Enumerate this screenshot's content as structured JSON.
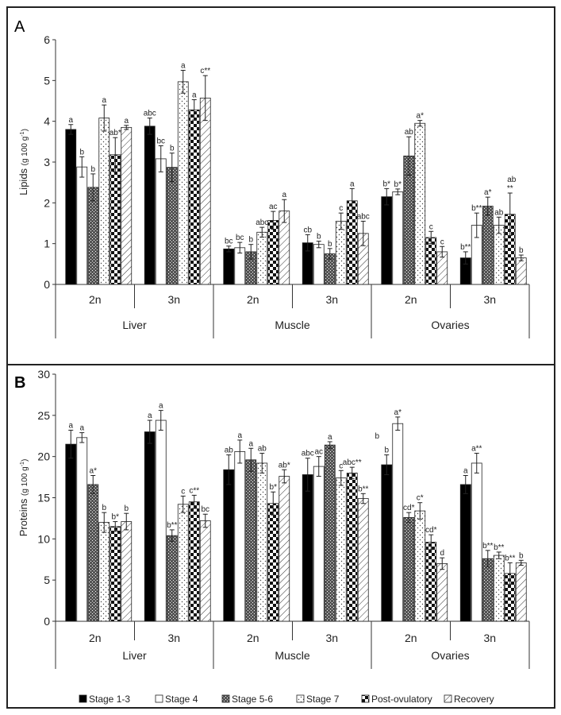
{
  "legend": {
    "entries": [
      "Stage 1-3",
      "Stage 4",
      "Stage 5-6",
      "Stage 7",
      "Post-ovulatory",
      "Recovery"
    ],
    "placement": "bottom"
  },
  "chart_data": [
    {
      "type": "bar",
      "panel": "A",
      "title": "",
      "ylabel": "Lipids (g 100 g⁻¹)",
      "ylabel_main": "Lipids",
      "ylabel_unit": "(g 100 g",
      "ylabel_sup": "-1",
      "ylabel_close": ")",
      "xlabel": "",
      "ylim": [
        0,
        6
      ],
      "yticks": [
        0,
        1,
        2,
        3,
        4,
        5,
        6
      ],
      "tissues": [
        "Liver",
        "Muscle",
        "Ovaries"
      ],
      "ploidy": [
        "2n",
        "3n"
      ],
      "categories": [
        "Liver 2n",
        "Liver 3n",
        "Muscle 2n",
        "Muscle 3n",
        "Ovaries 2n",
        "Ovaries 3n"
      ],
      "series": [
        {
          "name": "Stage 1-3",
          "values": [
            3.8,
            3.88,
            0.87,
            1.02,
            2.15,
            0.65
          ],
          "errors": [
            0.12,
            0.2,
            0.07,
            0.2,
            0.2,
            0.15
          ],
          "labels": [
            "a",
            "abc",
            "bc",
            "cb",
            "b*",
            "b**"
          ]
        },
        {
          "name": "Stage 4",
          "values": [
            2.88,
            3.08,
            0.9,
            0.98,
            2.27,
            1.45
          ],
          "errors": [
            0.25,
            0.32,
            0.13,
            0.08,
            0.07,
            0.3
          ],
          "labels": [
            "b",
            "bc",
            "bc",
            "b",
            "b*",
            "b**"
          ]
        },
        {
          "name": "Stage 5-6",
          "values": [
            2.38,
            2.87,
            0.8,
            0.75,
            3.15,
            1.92
          ],
          "errors": [
            0.33,
            0.35,
            0.18,
            0.13,
            0.47,
            0.22
          ],
          "labels": [
            "b",
            "b",
            "b",
            "b",
            "ab",
            "a*"
          ]
        },
        {
          "name": "Stage 7",
          "values": [
            4.08,
            4.97,
            1.28,
            1.55,
            3.95,
            1.45
          ],
          "errors": [
            0.32,
            0.28,
            0.12,
            0.2,
            0.07,
            0.2
          ],
          "labels": [
            "a",
            "a",
            "abc",
            "c",
            "a*",
            "ab"
          ]
        },
        {
          "name": "Post-ovulatory",
          "values": [
            3.18,
            4.28,
            1.57,
            2.05,
            1.15,
            1.72
          ],
          "errors": [
            0.42,
            0.25,
            0.22,
            0.3,
            0.15,
            0.52
          ],
          "labels": [
            "ab*",
            "a",
            "ac",
            "a",
            "c",
            "**"
          ]
        },
        {
          "name": "Recovery",
          "values": [
            3.85,
            4.57,
            1.8,
            1.25,
            0.8,
            0.65
          ],
          "errors": [
            0.05,
            0.55,
            0.28,
            0.3,
            0.13,
            0.07
          ],
          "labels": [
            "a",
            "c**",
            "a",
            "abc",
            "c",
            "b"
          ]
        }
      ],
      "extra_annotations": [
        {
          "group": 5,
          "text": "ab",
          "above_series": 4
        }
      ]
    },
    {
      "type": "bar",
      "panel": "B",
      "title": "",
      "ylabel": "Proteins (g 100 g⁻¹)",
      "ylabel_main": "Proteins",
      "ylabel_unit": "(g 100 g",
      "ylabel_sup": "-1",
      "ylabel_close": ")",
      "xlabel": "",
      "ylim": [
        0,
        30
      ],
      "yticks": [
        0,
        5,
        10,
        15,
        20,
        25,
        30
      ],
      "tissues": [
        "Liver",
        "Muscle",
        "Ovaries"
      ],
      "ploidy": [
        "2n",
        "3n"
      ],
      "categories": [
        "Liver 2n",
        "Liver 3n",
        "Muscle 2n",
        "Muscle 3n",
        "Ovaries 2n",
        "Ovaries 3n"
      ],
      "series": [
        {
          "name": "Stage 1-3",
          "values": [
            21.5,
            23.0,
            18.4,
            17.8,
            19.0,
            16.6
          ],
          "errors": [
            1.7,
            1.4,
            1.8,
            2.0,
            1.2,
            1.1
          ],
          "labels": [
            "a",
            "a",
            "ab",
            "abc",
            "b",
            "a"
          ]
        },
        {
          "name": "Stage 4",
          "values": [
            22.3,
            24.4,
            20.6,
            18.8,
            24.0,
            19.2
          ],
          "errors": [
            0.6,
            1.2,
            1.4,
            1.2,
            0.8,
            1.2
          ],
          "labels": [
            "a",
            "a",
            "a",
            "ac",
            "a*",
            "a**"
          ]
        },
        {
          "name": "Stage 5-6",
          "values": [
            16.6,
            10.4,
            19.6,
            21.4,
            12.6,
            7.6
          ],
          "errors": [
            1.1,
            0.7,
            1.4,
            0.4,
            0.6,
            1.0
          ],
          "labels": [
            "a*",
            "b**",
            "a",
            "a",
            "cd*",
            "b**"
          ]
        },
        {
          "name": "Stage 7",
          "values": [
            12.0,
            14.2,
            19.2,
            17.4,
            13.4,
            8.0
          ],
          "errors": [
            1.2,
            1.0,
            1.2,
            0.9,
            1.0,
            0.4
          ],
          "labels": [
            "b",
            "c",
            "ab",
            "c",
            "c*",
            "b**"
          ]
        },
        {
          "name": "Post-ovulatory",
          "values": [
            11.5,
            14.5,
            14.3,
            18.0,
            9.6,
            5.8
          ],
          "errors": [
            0.6,
            0.8,
            1.4,
            0.7,
            0.9,
            1.3
          ],
          "labels": [
            "b*",
            "c**",
            "b*",
            "abc**",
            "cd*",
            "b**"
          ]
        },
        {
          "name": "Recovery",
          "values": [
            12.1,
            12.2,
            17.6,
            14.9,
            7.0,
            7.1
          ],
          "errors": [
            1.0,
            0.8,
            0.8,
            0.6,
            0.7,
            0.3
          ],
          "labels": [
            "b",
            "bc",
            "ab*",
            "b**",
            "d",
            "b"
          ]
        }
      ],
      "extra_annotations": [
        {
          "group": 3,
          "text": "b",
          "free": true
        }
      ]
    }
  ]
}
